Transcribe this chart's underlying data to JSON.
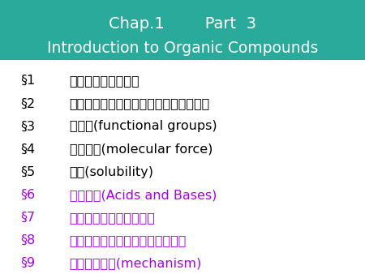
{
  "bg_color": "#ffffff",
  "header_bg_color": "#2aaa9a",
  "header_line1": "Chap.1        Part  3",
  "header_line2": "Introduction to Organic Compounds",
  "header_text_color": "#ffffff",
  "items": [
    {
      "num": "§1",
      "text": "代表的な有機化合物",
      "color": "#000000"
    },
    {
      "num": "§2",
      "text": "アルキル基（有機化合物の部分構造名）",
      "color": "#000000"
    },
    {
      "num": "§3",
      "text": "官能基(functional groups)",
      "color": "#000000"
    },
    {
      "num": "§4",
      "text": "分子間力(molecular force)",
      "color": "#000000"
    },
    {
      "num": "§5",
      "text": "溶解(solubility)",
      "color": "#000000"
    },
    {
      "num": "§6",
      "text": "酸と塩基(Acids and Bases)",
      "color": "#aa00ee"
    },
    {
      "num": "§7",
      "text": "酸塩基性と構造との関係",
      "color": "#aa00ee"
    },
    {
      "num": "§8",
      "text": "酸塩基反応としての有機化学反応",
      "color": "#aa00ee"
    },
    {
      "num": "§9",
      "text": "有機反応機構(mechanism)",
      "color": "#aa00ee"
    }
  ],
  "figsize": [
    4.5,
    3.38
  ],
  "dpi": 100
}
